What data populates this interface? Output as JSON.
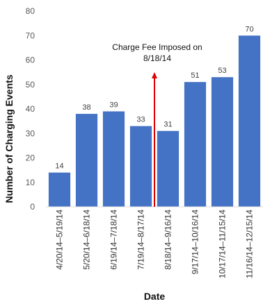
{
  "chart_data": {
    "type": "bar",
    "title": "",
    "xlabel": "Date",
    "ylabel": "Number of Charging Events",
    "ylim": [
      0,
      80
    ],
    "yticks": [
      0,
      10,
      20,
      30,
      40,
      50,
      60,
      70,
      80
    ],
    "grid": false,
    "legend": "none",
    "categories": [
      "4/20/14–5/19/14",
      "5/20/14–6/18/14",
      "6/19/14–7/18/14",
      "7/19/14–8/17/14",
      "8/18/14–9/16/14",
      "9/17/14–10/16/14",
      "10/17/14–11/15/14",
      "11/16/14–12/15/14"
    ],
    "values": [
      14,
      38,
      39,
      33,
      31,
      51,
      53,
      70
    ],
    "bar_color": "#4472c4",
    "annotations": [
      {
        "text_lines": [
          "Charge Fee Imposed on",
          "8/18/14"
        ],
        "marker": "vertical-arrow",
        "between_categories": [
          3,
          4
        ],
        "color": "#e00000"
      }
    ]
  }
}
